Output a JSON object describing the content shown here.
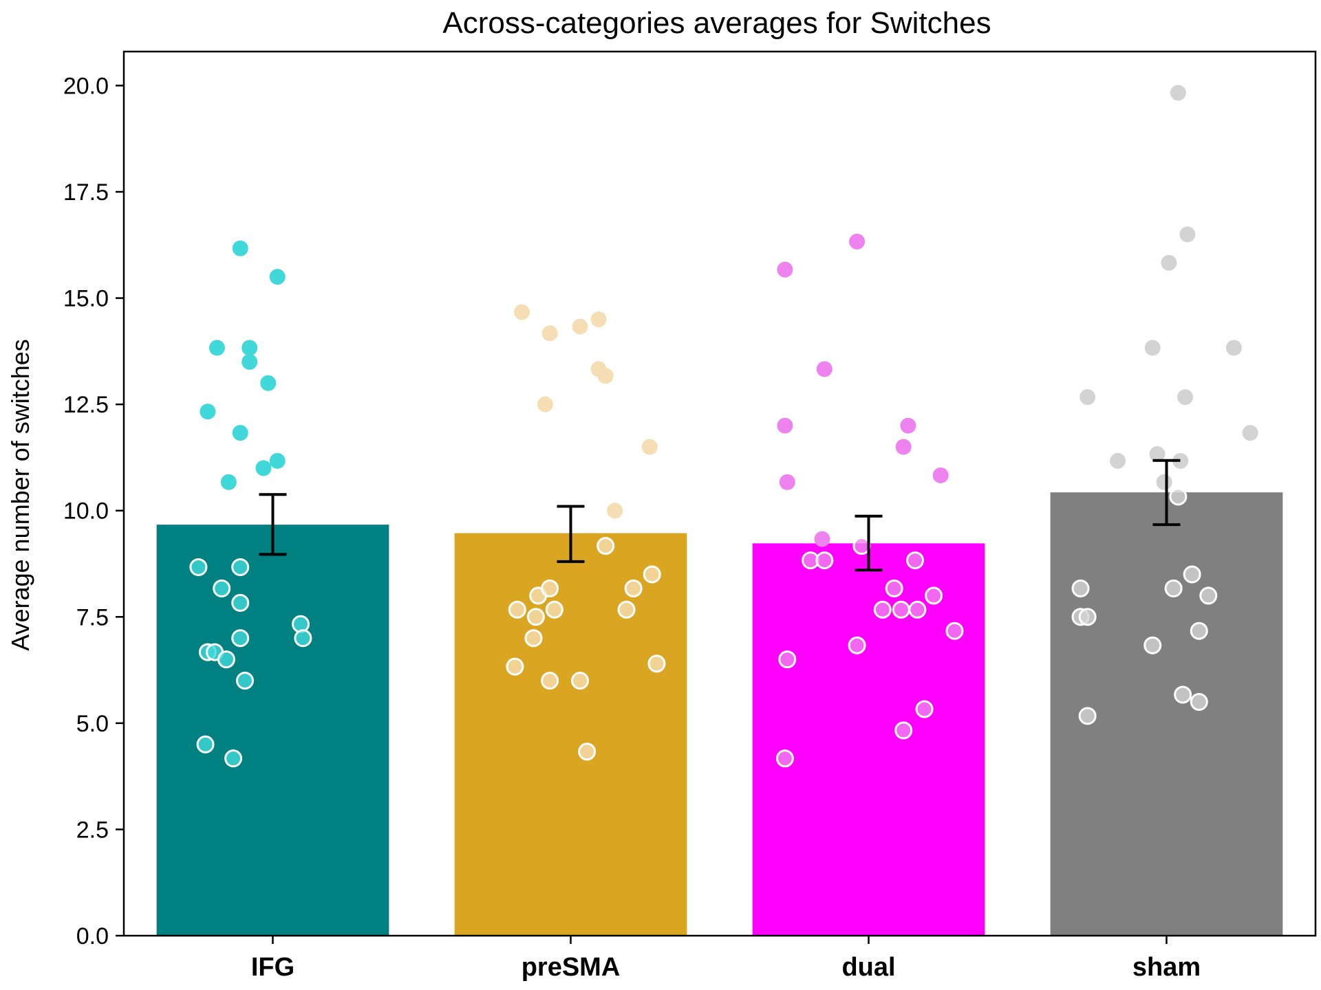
{
  "chart_data": {
    "type": "bar",
    "title": "Across-categories averages for Switches",
    "xlabel": "",
    "ylabel": "Average number of switches",
    "ylim": [
      0,
      20.8
    ],
    "yticks": [
      "0.0",
      "2.5",
      "5.0",
      "7.5",
      "10.0",
      "12.5",
      "15.0",
      "17.5",
      "20.0"
    ],
    "ytick_values": [
      0,
      2.5,
      5,
      7.5,
      10,
      12.5,
      15,
      17.5,
      20
    ],
    "grid": false,
    "categories": [
      "IFG",
      "preSMA",
      "dual",
      "sham"
    ],
    "values": [
      9.67,
      9.47,
      9.23,
      10.43
    ],
    "error": [
      {
        "low": 8.97,
        "high": 10.38
      },
      {
        "low": 8.8,
        "high": 10.1
      },
      {
        "low": 8.6,
        "high": 9.87
      },
      {
        "low": 9.67,
        "high": 11.18
      }
    ],
    "colors": {
      "bars": [
        "#008080",
        "#DAA520",
        "#FF00FF",
        "#808080"
      ],
      "points": [
        "#40D8D8",
        "#F5DEB3",
        "#EE82EE",
        "#D3D3D3"
      ],
      "error": "#000000",
      "axis": "#000000"
    },
    "points": [
      [
        {
          "c": 0.18,
          "y": 8.67
        },
        {
          "c": 0.21,
          "y": 4.5
        },
        {
          "c": 0.22,
          "y": 6.67
        },
        {
          "c": 0.25,
          "y": 6.67
        },
        {
          "c": 0.28,
          "y": 8.17
        },
        {
          "c": 0.3,
          "y": 6.5
        },
        {
          "c": 0.33,
          "y": 4.17
        },
        {
          "c": 0.36,
          "y": 8.67
        },
        {
          "c": 0.36,
          "y": 7.83
        },
        {
          "c": 0.36,
          "y": 7.0
        },
        {
          "c": 0.38,
          "y": 6.0
        },
        {
          "c": 0.62,
          "y": 7.33
        },
        {
          "c": 0.63,
          "y": 7.0
        },
        {
          "c": 0.22,
          "y": 12.33
        },
        {
          "c": 0.26,
          "y": 13.83
        },
        {
          "c": 0.31,
          "y": 10.67
        },
        {
          "c": 0.36,
          "y": 16.17
        },
        {
          "c": 0.36,
          "y": 11.83
        },
        {
          "c": 0.4,
          "y": 13.5
        },
        {
          "c": 0.4,
          "y": 13.83
        },
        {
          "c": 0.46,
          "y": 11.0
        },
        {
          "c": 0.48,
          "y": 13.0
        },
        {
          "c": 0.52,
          "y": 15.5
        },
        {
          "c": 0.52,
          "y": 11.17
        }
      ],
      [
        {
          "c": 0.26,
          "y": 6.33
        },
        {
          "c": 0.27,
          "y": 7.67
        },
        {
          "c": 0.34,
          "y": 7.0
        },
        {
          "c": 0.35,
          "y": 7.5
        },
        {
          "c": 0.36,
          "y": 8.0
        },
        {
          "c": 0.41,
          "y": 8.17
        },
        {
          "c": 0.41,
          "y": 6.0
        },
        {
          "c": 0.43,
          "y": 7.67
        },
        {
          "c": 0.54,
          "y": 6.0
        },
        {
          "c": 0.57,
          "y": 4.33
        },
        {
          "c": 0.65,
          "y": 9.17
        },
        {
          "c": 0.74,
          "y": 7.67
        },
        {
          "c": 0.77,
          "y": 8.17
        },
        {
          "c": 0.85,
          "y": 8.5
        },
        {
          "c": 0.87,
          "y": 6.4
        },
        {
          "c": 0.29,
          "y": 14.67
        },
        {
          "c": 0.39,
          "y": 12.5
        },
        {
          "c": 0.41,
          "y": 14.17
        },
        {
          "c": 0.54,
          "y": 14.33
        },
        {
          "c": 0.62,
          "y": 14.5
        },
        {
          "c": 0.62,
          "y": 13.33
        },
        {
          "c": 0.65,
          "y": 13.17
        },
        {
          "c": 0.69,
          "y": 10.0
        },
        {
          "c": 0.84,
          "y": 11.5
        }
      ],
      [
        {
          "c": 0.14,
          "y": 4.17
        },
        {
          "c": 0.15,
          "y": 6.5
        },
        {
          "c": 0.25,
          "y": 8.83
        },
        {
          "c": 0.31,
          "y": 8.83
        },
        {
          "c": 0.45,
          "y": 6.83
        },
        {
          "c": 0.47,
          "y": 9.17
        },
        {
          "c": 0.56,
          "y": 7.67
        },
        {
          "c": 0.61,
          "y": 8.17
        },
        {
          "c": 0.64,
          "y": 7.67
        },
        {
          "c": 0.65,
          "y": 4.83
        },
        {
          "c": 0.71,
          "y": 7.67
        },
        {
          "c": 0.7,
          "y": 8.83
        },
        {
          "c": 0.74,
          "y": 5.33
        },
        {
          "c": 0.78,
          "y": 8.0
        },
        {
          "c": 0.87,
          "y": 7.17
        },
        {
          "c": 0.14,
          "y": 15.67
        },
        {
          "c": 0.14,
          "y": 12.0
        },
        {
          "c": 0.15,
          "y": 10.67
        },
        {
          "c": 0.31,
          "y": 13.33
        },
        {
          "c": 0.3,
          "y": 9.33
        },
        {
          "c": 0.45,
          "y": 16.33
        },
        {
          "c": 0.65,
          "y": 11.5
        },
        {
          "c": 0.67,
          "y": 12.0
        },
        {
          "c": 0.81,
          "y": 10.83
        }
      ],
      [
        {
          "c": 0.13,
          "y": 8.17
        },
        {
          "c": 0.13,
          "y": 7.5
        },
        {
          "c": 0.16,
          "y": 7.5
        },
        {
          "c": 0.16,
          "y": 5.17
        },
        {
          "c": 0.44,
          "y": 6.83
        },
        {
          "c": 0.53,
          "y": 8.17
        },
        {
          "c": 0.55,
          "y": 10.33
        },
        {
          "c": 0.57,
          "y": 5.67
        },
        {
          "c": 0.61,
          "y": 8.5
        },
        {
          "c": 0.64,
          "y": 5.5
        },
        {
          "c": 0.64,
          "y": 7.17
        },
        {
          "c": 0.68,
          "y": 8.0
        },
        {
          "c": 0.16,
          "y": 12.67
        },
        {
          "c": 0.29,
          "y": 11.17
        },
        {
          "c": 0.44,
          "y": 13.83
        },
        {
          "c": 0.46,
          "y": 11.33
        },
        {
          "c": 0.49,
          "y": 10.67
        },
        {
          "c": 0.51,
          "y": 15.83
        },
        {
          "c": 0.55,
          "y": 19.83
        },
        {
          "c": 0.56,
          "y": 11.17
        },
        {
          "c": 0.58,
          "y": 12.67
        },
        {
          "c": 0.59,
          "y": 16.5
        },
        {
          "c": 0.79,
          "y": 13.83
        },
        {
          "c": 0.86,
          "y": 11.83
        }
      ]
    ]
  }
}
